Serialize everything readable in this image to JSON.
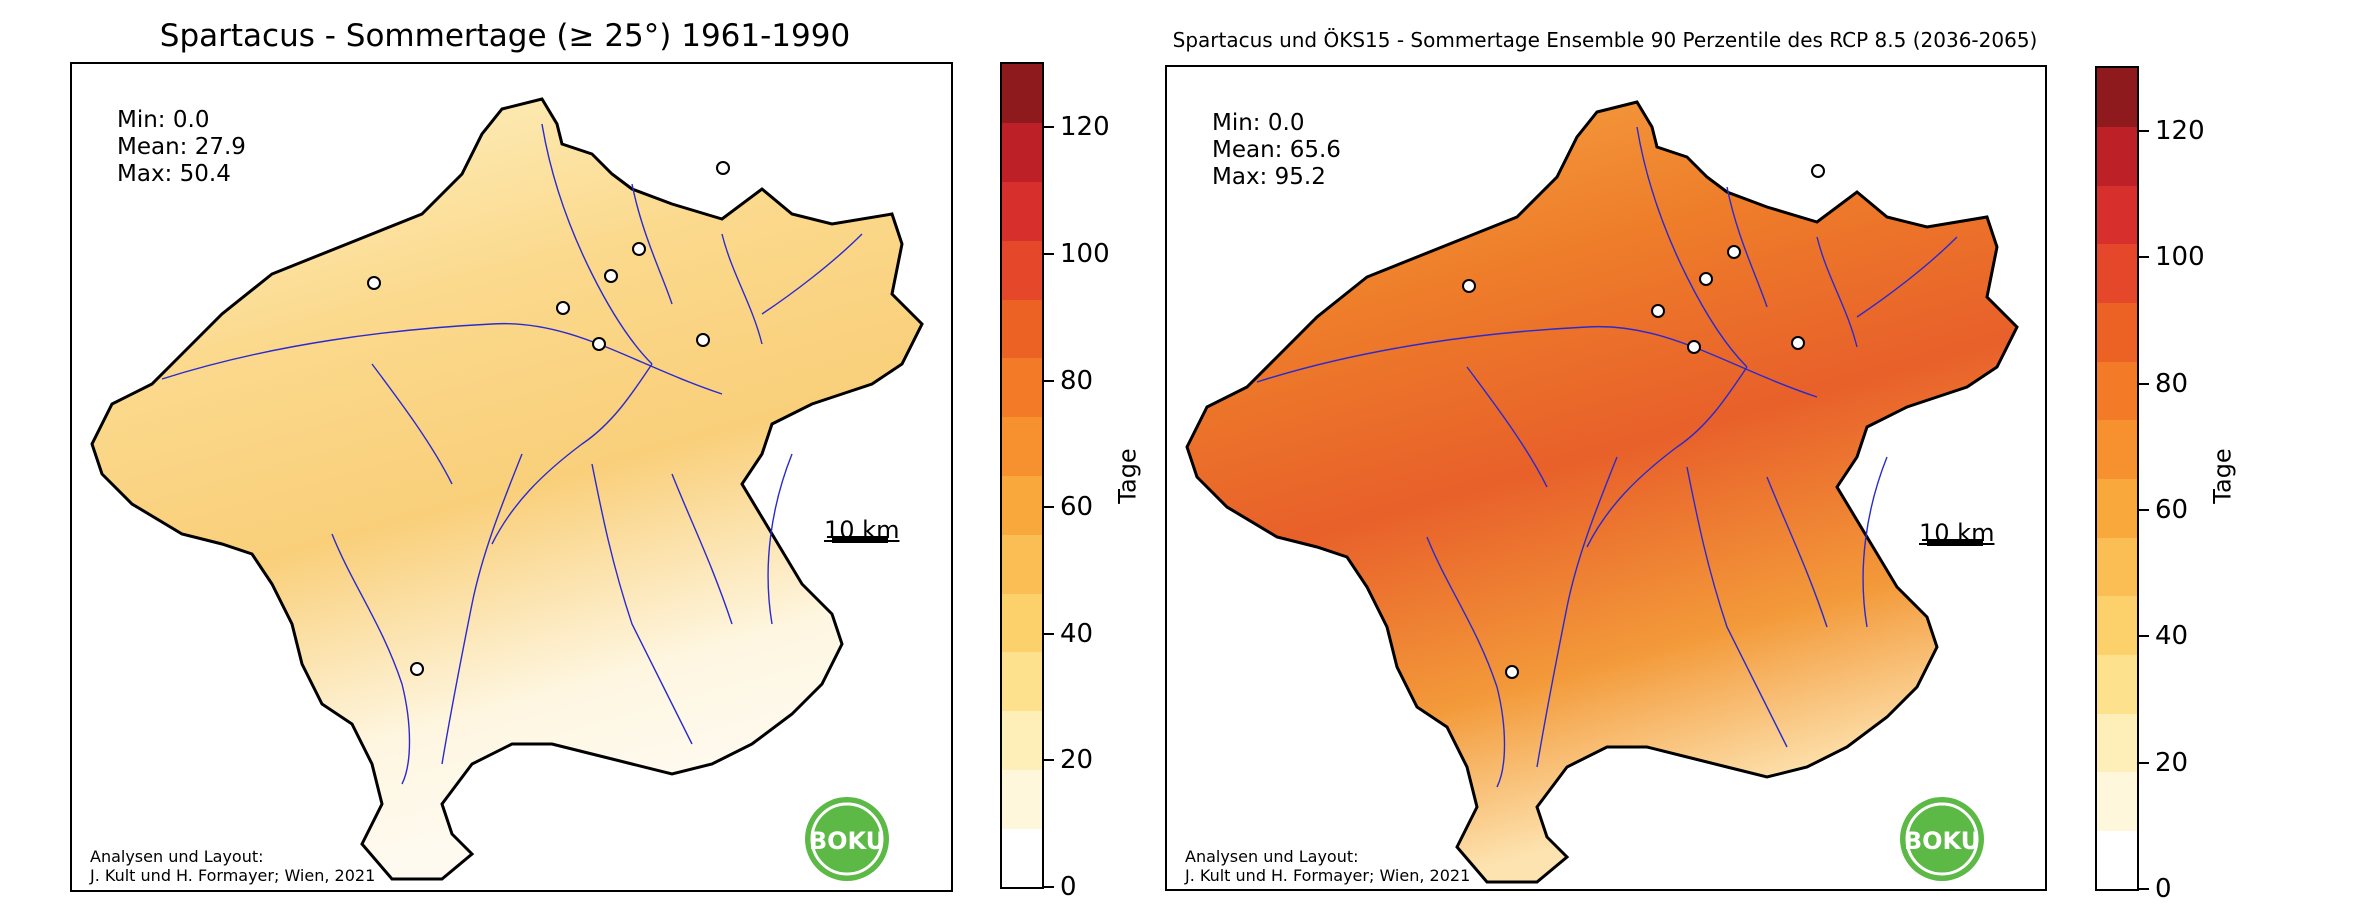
{
  "panels": [
    {
      "title": "Spartacus - Sommertage (≥ 25°) 1961-1990",
      "stats": {
        "min": "Min: 0.0",
        "mean": "Mean: 27.9",
        "max": "Max: 50.4"
      },
      "credit_line1": "Analysen und Layout:",
      "credit_line2": "J. Kult und H. Formayer; Wien, 2021",
      "scale_label": "10 km",
      "logo_text": "BOKU",
      "fill_colors": {
        "low": "#fdf3c8",
        "mid": "#fbd98c",
        "high": "#f7c468"
      }
    },
    {
      "title": "Spartacus und ÖKS15 - Sommertage Ensemble 90 Perzentile des RCP 8.5 (2036-2065)",
      "stats": {
        "min": "Min: 0.0",
        "mean": "Mean: 65.6",
        "max": "Max: 95.2"
      },
      "credit_line1": "Analysen und Layout:",
      "credit_line2": "J. Kult und H. Formayer; Wien, 2021",
      "scale_label": "10 km",
      "logo_text": "BOKU",
      "fill_colors": {
        "low": "#f5a23d",
        "mid": "#ee7d2a",
        "high": "#e0542a"
      }
    }
  ],
  "colorbar": {
    "label": "Tage",
    "ticks": [
      "0",
      "20",
      "40",
      "60",
      "80",
      "100",
      "120"
    ],
    "range": [
      0,
      130
    ],
    "colors": [
      "#ffffff",
      "#fff7dc",
      "#fdefb7",
      "#fde18d",
      "#fcd06a",
      "#fbbe55",
      "#f9a83c",
      "#f7902f",
      "#f37a27",
      "#ec6124",
      "#e4472a",
      "#d62f2c",
      "#bd2127",
      "#8f1a1d"
    ]
  },
  "colors": {
    "river": "#2a2ad0",
    "border": "#000000",
    "logo_green": "#5cb946"
  }
}
